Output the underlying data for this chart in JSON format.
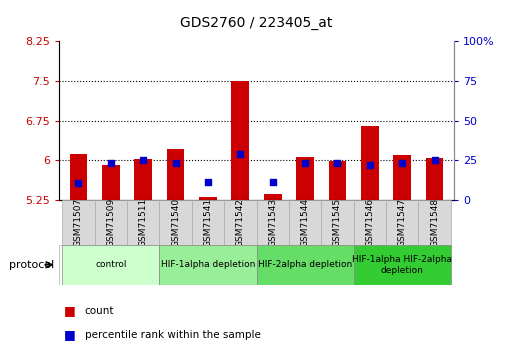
{
  "title": "GDS2760 / 223405_at",
  "samples": [
    "GSM71507",
    "GSM71509",
    "GSM71511",
    "GSM71540",
    "GSM71541",
    "GSM71542",
    "GSM71543",
    "GSM71544",
    "GSM71545",
    "GSM71546",
    "GSM71547",
    "GSM71548"
  ],
  "count_values": [
    6.12,
    5.92,
    6.03,
    6.22,
    5.3,
    7.5,
    5.37,
    6.07,
    5.98,
    6.65,
    6.1,
    6.05
  ],
  "percentile_values": [
    5.58,
    5.96,
    6.0,
    5.96,
    5.6,
    6.12,
    5.6,
    5.96,
    5.96,
    5.92,
    5.96,
    6.0
  ],
  "ylim": [
    5.25,
    8.25
  ],
  "yticks": [
    5.25,
    6.0,
    6.75,
    7.5,
    8.25
  ],
  "ytick_labels": [
    "5.25",
    "6",
    "6.75",
    "7.5",
    "8.25"
  ],
  "y2ticks": [
    0,
    25,
    50,
    75,
    100
  ],
  "y2tick_labels": [
    "0",
    "25",
    "50",
    "75",
    "100%"
  ],
  "bar_color": "#cc0000",
  "dot_color": "#0000cc",
  "bar_bottom": 5.25,
  "gridline_values": [
    6.0,
    6.75,
    7.5
  ],
  "protocol_groups": [
    {
      "label": "control",
      "indices": [
        0,
        1,
        2
      ],
      "color": "#ccffcc"
    },
    {
      "label": "HIF-1alpha depletion",
      "indices": [
        3,
        4,
        5
      ],
      "color": "#99ee99"
    },
    {
      "label": "HIF-2alpha depletion",
      "indices": [
        6,
        7,
        8
      ],
      "color": "#66dd66"
    },
    {
      "label": "HIF-1alpha HIF-2alpha\ndepletion",
      "indices": [
        9,
        10,
        11
      ],
      "color": "#33cc33"
    }
  ],
  "title_fontsize": 10,
  "tick_label_color_left": "#cc0000",
  "tick_label_color_right": "#0000cc",
  "sample_cell_color": "#d8d8d8",
  "figure_width": 5.13,
  "figure_height": 3.45
}
